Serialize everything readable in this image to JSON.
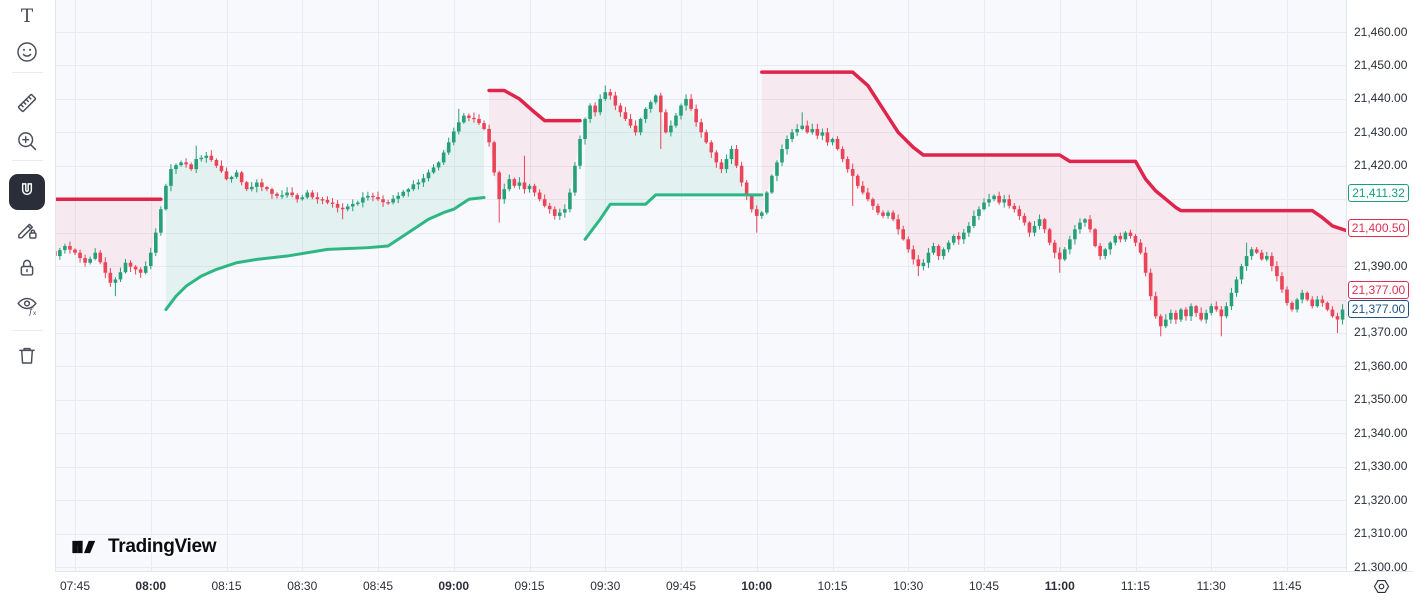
{
  "logo": {
    "text": "TradingView"
  },
  "toolbar": {
    "items": [
      {
        "name": "text-tool",
        "icon": "text-icon",
        "active": false
      },
      {
        "name": "emoji-tool",
        "icon": "emoji-icon",
        "active": false
      },
      {
        "name": "measure-tool",
        "icon": "ruler-icon",
        "active": false
      },
      {
        "name": "zoom-in-tool",
        "icon": "magnifier-plus-icon",
        "active": false
      },
      {
        "name": "magnet-tool",
        "icon": "magnet-icon",
        "active": true
      },
      {
        "name": "drawing-lock-tool",
        "icon": "pencil-lock-icon",
        "active": false
      },
      {
        "name": "lock-all-drawings-tool",
        "icon": "lock-icon",
        "active": false
      },
      {
        "name": "hide-indicators-tool",
        "icon": "eye-fx-icon",
        "active": false
      },
      {
        "name": "remove-drawings-tool",
        "icon": "trash-icon",
        "active": false
      }
    ]
  },
  "price_axis": {
    "ticks": [
      {
        "label": "21,460.00",
        "price": 21460
      },
      {
        "label": "21,450.00",
        "price": 21450
      },
      {
        "label": "21,440.00",
        "price": 21440
      },
      {
        "label": "21,430.00",
        "price": 21430
      },
      {
        "label": "21,420.00",
        "price": 21420
      },
      {
        "label": "21,390.00",
        "price": 21390
      },
      {
        "label": "21,370.00",
        "price": 21370
      },
      {
        "label": "21,360.00",
        "price": 21360
      },
      {
        "label": "21,350.00",
        "price": 21350
      },
      {
        "label": "21,340.00",
        "price": 21340
      },
      {
        "label": "21,330.00",
        "price": 21330
      },
      {
        "label": "21,320.00",
        "price": 21320
      },
      {
        "label": "21,310.00",
        "price": 21310
      },
      {
        "label": "21,300.00",
        "price": 21300
      }
    ],
    "indicator_labels": [
      {
        "name": "long-stop-label",
        "value": "21,411.32",
        "price": 21411.32,
        "color": "green"
      },
      {
        "name": "short-stop-label",
        "value": "21,400.50",
        "price": 21400.5,
        "color": "red"
      }
    ],
    "price_labels": [
      {
        "name": "last-price-label",
        "value": "21,377.00",
        "price": 21377.0,
        "color": "red"
      },
      {
        "name": "prev-close-label",
        "value": "21,377.00",
        "price": 21377.0,
        "color": "blue"
      }
    ]
  },
  "time_axis": {
    "ticks": [
      {
        "label": "07:45",
        "bold": false
      },
      {
        "label": "08:00",
        "bold": true
      },
      {
        "label": "08:15",
        "bold": false
      },
      {
        "label": "08:30",
        "bold": false
      },
      {
        "label": "08:45",
        "bold": false
      },
      {
        "label": "09:00",
        "bold": true
      },
      {
        "label": "09:15",
        "bold": false
      },
      {
        "label": "09:30",
        "bold": false
      },
      {
        "label": "09:45",
        "bold": false
      },
      {
        "label": "10:00",
        "bold": true
      },
      {
        "label": "10:15",
        "bold": false
      },
      {
        "label": "10:30",
        "bold": false
      },
      {
        "label": "10:45",
        "bold": false
      },
      {
        "label": "11:00",
        "bold": true
      },
      {
        "label": "11:15",
        "bold": false
      },
      {
        "label": "11:30",
        "bold": false
      },
      {
        "label": "11:45",
        "bold": false
      }
    ]
  },
  "chart": {
    "type": "candlestick",
    "indicator": "trailing-stop",
    "interval": "1m",
    "visible_time_range": [
      "07:41",
      "11:56"
    ],
    "visible_price_range": [
      21298,
      21465
    ],
    "candle_count": 256,
    "colors": {
      "up_candle": "#27a077",
      "down_candle": "#e94457",
      "up_line": "#2eb785",
      "down_line": "#e0244c",
      "up_fill": "rgba(46,183,133,0.10)",
      "down_fill": "rgba(224,36,76,0.075)",
      "grid": "#e9ebf3",
      "background": "#f8f9fd"
    },
    "close_anchors": [
      [
        0,
        21393
      ],
      [
        2,
        21396
      ],
      [
        4,
        21394
      ],
      [
        6,
        21391
      ],
      [
        8,
        21394
      ],
      [
        10,
        21388
      ],
      [
        11,
        21385
      ],
      [
        12,
        21386
      ],
      [
        14,
        21391
      ],
      [
        16,
        21389
      ],
      [
        17,
        21388
      ],
      [
        18,
        21390
      ],
      [
        19,
        21394
      ],
      [
        20,
        21400
      ],
      [
        21,
        21407
      ],
      [
        22,
        21414
      ],
      [
        23,
        21419
      ],
      [
        25,
        21421
      ],
      [
        27,
        21419
      ],
      [
        28,
        21422
      ],
      [
        30,
        21423
      ],
      [
        32,
        21420
      ],
      [
        34,
        21416
      ],
      [
        36,
        21418
      ],
      [
        38,
        21413
      ],
      [
        40,
        21415
      ],
      [
        42,
        21413
      ],
      [
        44,
        21411
      ],
      [
        46,
        21412
      ],
      [
        48,
        21410
      ],
      [
        50,
        21412
      ],
      [
        52,
        21410
      ],
      [
        54,
        21409
      ],
      [
        57,
        21407
      ],
      [
        60,
        21409
      ],
      [
        62,
        21411
      ],
      [
        64,
        21410
      ],
      [
        66,
        21409
      ],
      [
        68,
        21411
      ],
      [
        70,
        21413
      ],
      [
        72,
        21415
      ],
      [
        74,
        21418
      ],
      [
        76,
        21421
      ],
      [
        78,
        21427
      ],
      [
        80,
        21433
      ],
      [
        81,
        21435
      ],
      [
        83,
        21434
      ],
      [
        85,
        21431
      ],
      [
        86,
        21427
      ],
      [
        87,
        21418
      ],
      [
        88,
        21410
      ],
      [
        89,
        21413
      ],
      [
        90,
        21416
      ],
      [
        91,
        21414
      ],
      [
        92,
        21415
      ],
      [
        93,
        21413
      ],
      [
        94,
        21414
      ],
      [
        95,
        21412
      ],
      [
        96,
        21410
      ],
      [
        97,
        21408
      ],
      [
        98,
        21407
      ],
      [
        99,
        21405
      ],
      [
        100,
        21406
      ],
      [
        101,
        21407
      ],
      [
        102,
        21412
      ],
      [
        103,
        21420
      ],
      [
        104,
        21428
      ],
      [
        105,
        21434
      ],
      [
        106,
        21438
      ],
      [
        107,
        21436
      ],
      [
        108,
        21440
      ],
      [
        109,
        21442
      ],
      [
        110,
        21441
      ],
      [
        111,
        21438
      ],
      [
        112,
        21436
      ],
      [
        113,
        21434
      ],
      [
        114,
        21432
      ],
      [
        115,
        21430
      ],
      [
        116,
        21434
      ],
      [
        117,
        21437
      ],
      [
        118,
        21439
      ],
      [
        119,
        21441
      ],
      [
        120,
        21436
      ],
      [
        121,
        21430
      ],
      [
        122,
        21432
      ],
      [
        123,
        21435
      ],
      [
        124,
        21438
      ],
      [
        125,
        21440
      ],
      [
        126,
        21437
      ],
      [
        127,
        21433
      ],
      [
        128,
        21430
      ],
      [
        129,
        21427
      ],
      [
        130,
        21424
      ],
      [
        131,
        21421
      ],
      [
        132,
        21419
      ],
      [
        133,
        21422
      ],
      [
        134,
        21425
      ],
      [
        135,
        21420
      ],
      [
        136,
        21415
      ],
      [
        137,
        21411
      ],
      [
        138,
        21407
      ],
      [
        139,
        21405
      ],
      [
        140,
        21406
      ],
      [
        141,
        21412
      ],
      [
        142,
        21417
      ],
      [
        143,
        21421
      ],
      [
        144,
        21425
      ],
      [
        145,
        21428
      ],
      [
        146,
        21430
      ],
      [
        147,
        21431
      ],
      [
        148,
        21432
      ],
      [
        149,
        21430
      ],
      [
        150,
        21431
      ],
      [
        151,
        21429
      ],
      [
        152,
        21430
      ],
      [
        153,
        21427
      ],
      [
        154,
        21428
      ],
      [
        155,
        21425
      ],
      [
        156,
        21422
      ],
      [
        157,
        21419
      ],
      [
        158,
        21417
      ],
      [
        159,
        21414
      ],
      [
        160,
        21412
      ],
      [
        161,
        21410
      ],
      [
        162,
        21408
      ],
      [
        163,
        21406
      ],
      [
        164,
        21405
      ],
      [
        165,
        21406
      ],
      [
        166,
        21404
      ],
      [
        167,
        21401
      ],
      [
        168,
        21398
      ],
      [
        169,
        21395
      ],
      [
        170,
        21392
      ],
      [
        171,
        21390
      ],
      [
        172,
        21391
      ],
      [
        173,
        21394
      ],
      [
        174,
        21396
      ],
      [
        175,
        21393
      ],
      [
        176,
        21395
      ],
      [
        177,
        21397
      ],
      [
        178,
        21399
      ],
      [
        179,
        21398
      ],
      [
        180,
        21400
      ],
      [
        181,
        21402
      ],
      [
        182,
        21405
      ],
      [
        183,
        21407
      ],
      [
        184,
        21409
      ],
      [
        185,
        21410
      ],
      [
        186,
        21411
      ],
      [
        187,
        21409
      ],
      [
        188,
        21410
      ],
      [
        189,
        21408
      ],
      [
        190,
        21407
      ],
      [
        191,
        21405
      ],
      [
        192,
        21403
      ],
      [
        193,
        21400
      ],
      [
        194,
        21402
      ],
      [
        195,
        21404
      ],
      [
        196,
        21401
      ],
      [
        197,
        21397
      ],
      [
        198,
        21394
      ],
      [
        199,
        21392
      ],
      [
        200,
        21395
      ],
      [
        201,
        21398
      ],
      [
        202,
        21401
      ],
      [
        203,
        21403
      ],
      [
        204,
        21404
      ],
      [
        205,
        21401
      ],
      [
        206,
        21396
      ],
      [
        207,
        21393
      ],
      [
        208,
        21395
      ],
      [
        209,
        21397
      ],
      [
        210,
        21399
      ],
      [
        211,
        21398
      ],
      [
        212,
        21400
      ],
      [
        213,
        21399
      ],
      [
        214,
        21397
      ],
      [
        215,
        21394
      ],
      [
        216,
        21388
      ],
      [
        217,
        21381
      ],
      [
        218,
        21375
      ],
      [
        219,
        21372
      ],
      [
        220,
        21374
      ],
      [
        221,
        21376
      ],
      [
        222,
        21374
      ],
      [
        223,
        21377
      ],
      [
        224,
        21375
      ],
      [
        225,
        21378
      ],
      [
        226,
        21376
      ],
      [
        227,
        21374
      ],
      [
        228,
        21376
      ],
      [
        229,
        21378
      ],
      [
        230,
        21377
      ],
      [
        231,
        21375
      ],
      [
        232,
        21378
      ],
      [
        233,
        21382
      ],
      [
        234,
        21386
      ],
      [
        235,
        21390
      ],
      [
        236,
        21393
      ],
      [
        237,
        21395
      ],
      [
        238,
        21394
      ],
      [
        239,
        21392
      ],
      [
        240,
        21393
      ],
      [
        241,
        21390
      ],
      [
        242,
        21387
      ],
      [
        243,
        21383
      ],
      [
        244,
        21379
      ],
      [
        245,
        21377
      ],
      [
        246,
        21380
      ],
      [
        247,
        21382
      ],
      [
        248,
        21380
      ],
      [
        249,
        21378
      ],
      [
        250,
        21380
      ],
      [
        251,
        21379
      ],
      [
        252,
        21377
      ],
      [
        253,
        21375
      ],
      [
        254,
        21374
      ],
      [
        255,
        21377
      ]
    ],
    "wick_spikes": [
      [
        12,
        "L",
        21381
      ],
      [
        28,
        "H",
        21426
      ],
      [
        57,
        "L",
        21404
      ],
      [
        80,
        "H",
        21437
      ],
      [
        88,
        "L",
        21403
      ],
      [
        93,
        "H",
        21423
      ],
      [
        109,
        "H",
        21444
      ],
      [
        120,
        "L",
        21425
      ],
      [
        139,
        "L",
        21400
      ],
      [
        148,
        "H",
        21436
      ],
      [
        158,
        "L",
        21408
      ],
      [
        171,
        "L",
        21387
      ],
      [
        199,
        "L",
        21388
      ],
      [
        219,
        "L",
        21369
      ],
      [
        231,
        "L",
        21369
      ],
      [
        236,
        "H",
        21397
      ],
      [
        254,
        "L",
        21370
      ]
    ],
    "trend_segments": [
      {
        "trend": "down",
        "points": [
          [
            -1,
            21410
          ],
          [
            21,
            21410
          ]
        ]
      },
      {
        "trend": "up",
        "points": [
          [
            22,
            21377
          ],
          [
            24,
            21381
          ],
          [
            26,
            21384
          ],
          [
            29,
            21387
          ],
          [
            32,
            21389
          ],
          [
            36,
            21391
          ],
          [
            40,
            21392
          ],
          [
            46,
            21393
          ],
          [
            54,
            21395
          ],
          [
            62,
            21395.5
          ],
          [
            66,
            21396
          ],
          [
            70,
            21400
          ],
          [
            74,
            21404
          ],
          [
            77,
            21406
          ],
          [
            79,
            21407
          ],
          [
            82,
            21410
          ],
          [
            85,
            21410.5
          ]
        ]
      },
      {
        "trend": "down",
        "points": [
          [
            86,
            21442.5
          ],
          [
            89,
            21442.5
          ],
          [
            92,
            21440
          ],
          [
            95,
            21436
          ],
          [
            97,
            21433.5
          ],
          [
            104,
            21433.5
          ]
        ]
      },
      {
        "trend": "up",
        "points": [
          [
            105,
            21398
          ],
          [
            108,
            21404
          ],
          [
            110,
            21408.5
          ],
          [
            117,
            21408.5
          ],
          [
            119,
            21411.3
          ],
          [
            140,
            21411.3
          ]
        ]
      },
      {
        "trend": "down",
        "points": [
          [
            140,
            21448
          ],
          [
            158,
            21448
          ],
          [
            161,
            21444
          ],
          [
            164,
            21437
          ],
          [
            167,
            21430
          ],
          [
            170,
            21425.5
          ],
          [
            172,
            21423.2
          ],
          [
            199,
            21423.2
          ],
          [
            201,
            21421.3
          ],
          [
            214,
            21421.3
          ],
          [
            216,
            21416
          ],
          [
            218,
            21412.5
          ],
          [
            220,
            21410
          ],
          [
            222,
            21407.5
          ],
          [
            223,
            21406.6
          ],
          [
            249,
            21406.6
          ],
          [
            251,
            21404.5
          ],
          [
            253,
            21402
          ],
          [
            256,
            21400.5
          ]
        ]
      }
    ]
  }
}
